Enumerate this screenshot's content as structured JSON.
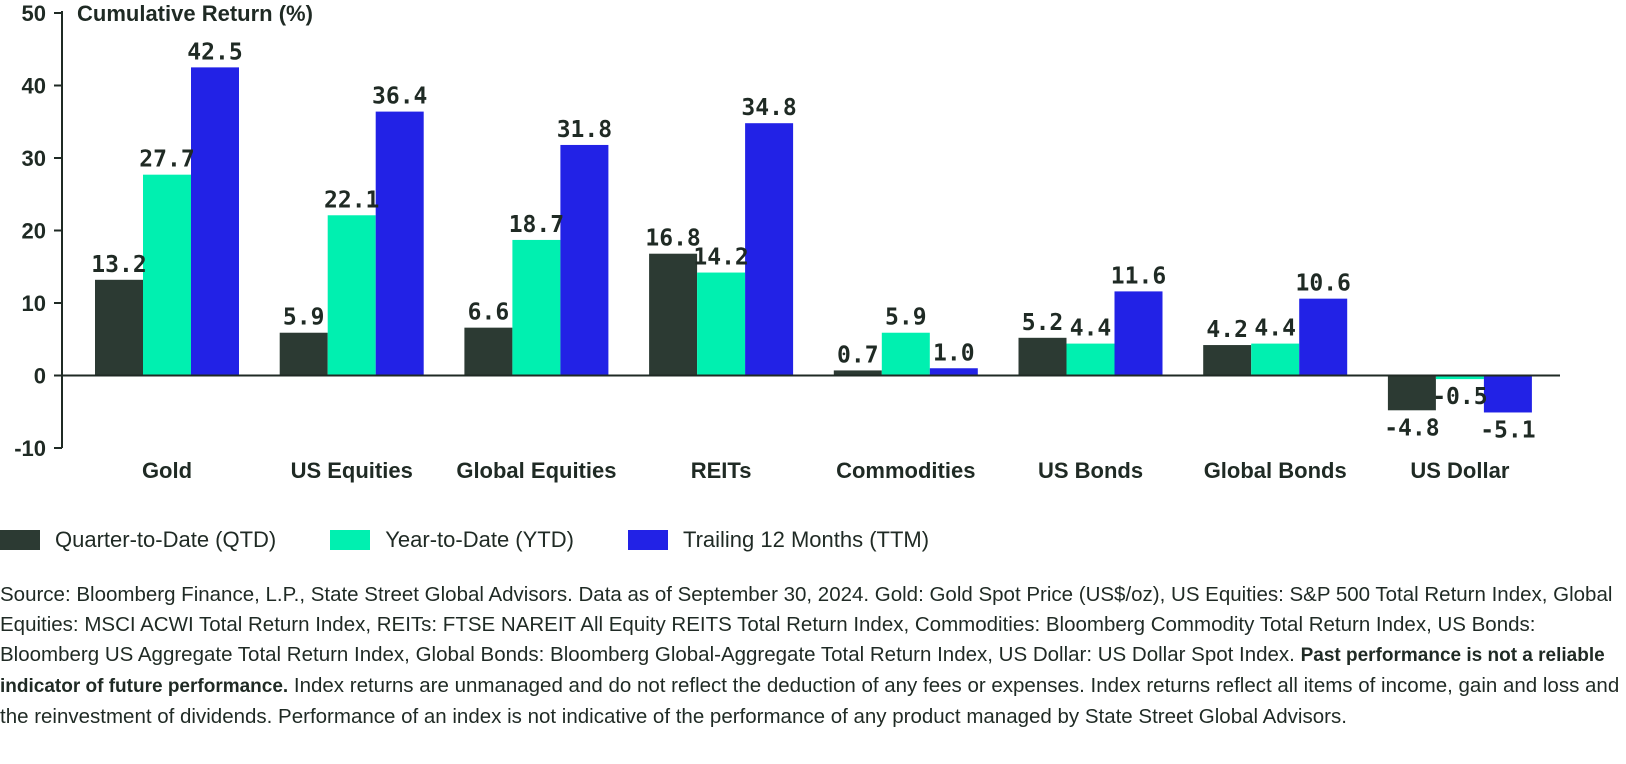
{
  "chart_data": {
    "type": "bar",
    "ylabel": "Cumulative Return (%)",
    "yticks": [
      50,
      40,
      30,
      20,
      10,
      0,
      -10
    ],
    "ylim": [
      -10,
      50
    ],
    "categories": [
      "Gold",
      "US Equities",
      "Global Equities",
      "REITs",
      "Commodities",
      "US Bonds",
      "Global Bonds",
      "US Dollar"
    ],
    "series": [
      {
        "name": "Quarter-to-Date (QTD)",
        "color": "#2c3a33",
        "values": [
          13.2,
          5.9,
          6.6,
          16.8,
          0.7,
          5.2,
          4.2,
          -4.8
        ]
      },
      {
        "name": "Year-to-Date (YTD)",
        "color": "#00f0b0",
        "values": [
          27.7,
          22.1,
          18.7,
          14.2,
          5.9,
          4.4,
          4.4,
          -0.5
        ]
      },
      {
        "name": "Trailing 12 Months (TTM)",
        "color": "#2222e6",
        "values": [
          42.5,
          36.4,
          31.8,
          34.8,
          1.0,
          11.6,
          10.6,
          -5.1
        ]
      }
    ]
  },
  "source": {
    "intro": "Source: Bloomberg Finance, L.P., State Street Global Advisors. Data as of September 30, 2024. Gold: Gold Spot Price (US$/oz), US Equities: S&P 500 Total Return Index, Global Equities: MSCI ACWI Total Return Index, REITs: FTSE NAREIT All Equity REITS Total Return Index, Commodities: Bloomberg Commodity Total Return Index, US Bonds: Bloomberg US Aggregate Total Return Index, Global Bonds: Bloomberg Global-Aggregate Total Return Index, US Dollar: US Dollar Spot Index.",
    "bold": "Past performance is not a reliable indicator of future performance.",
    "rest": "Index returns are unmanaged and do not reflect the deduction of any fees or expenses. Index returns reflect all items of income, gain and loss and the reinvestment of dividends. Performance of an index is not indicative of the performance of any product managed by State Street Global Advisors."
  }
}
